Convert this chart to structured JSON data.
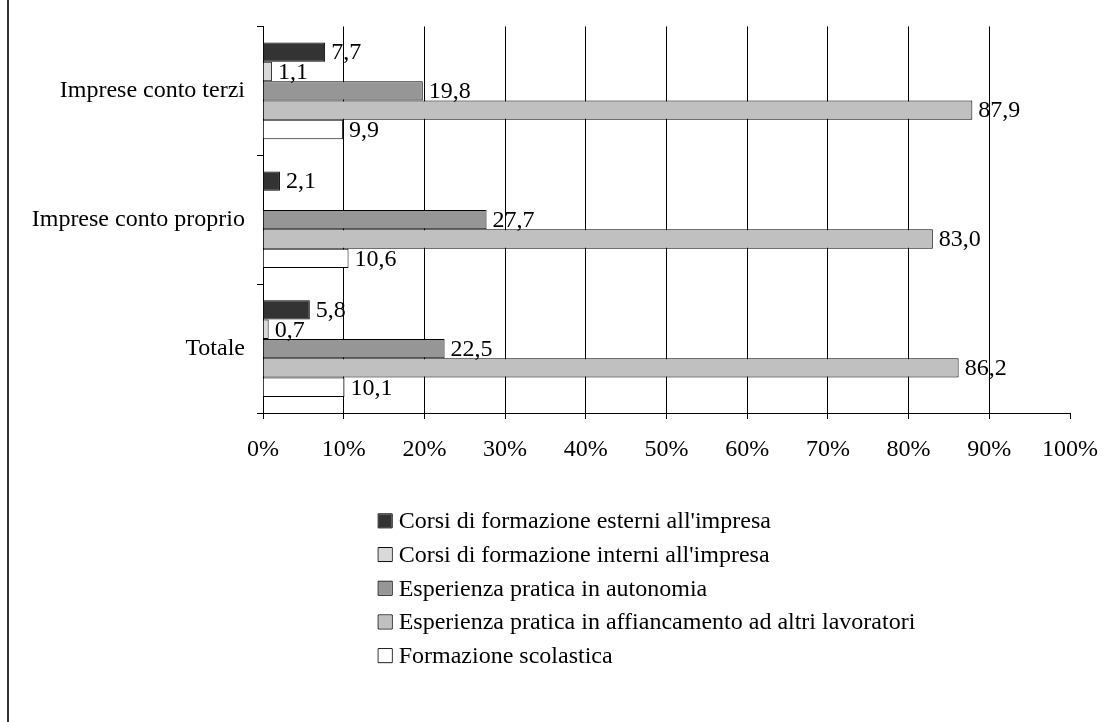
{
  "chart_data": {
    "type": "bar",
    "orientation": "horizontal",
    "categories": [
      "Imprese conto terzi",
      "Imprese conto proprio",
      "Totale"
    ],
    "series": [
      {
        "name": "Corsi di formazione esterni all'impresa",
        "color": "#333333",
        "values": [
          7.7,
          2.1,
          5.8
        ],
        "value_labels": [
          "7,7",
          "2,1",
          "5,8"
        ]
      },
      {
        "name": "Corsi di formazione interni all'impresa",
        "color": "#d9d9d9",
        "values": [
          1.1,
          null,
          0.7
        ],
        "value_labels": [
          "1,1",
          null,
          "0,7"
        ]
      },
      {
        "name": "Esperienza pratica in autonomia",
        "color": "#969696",
        "values": [
          19.8,
          27.7,
          22.5
        ],
        "value_labels": [
          "19,8",
          "27,7",
          "22,5"
        ]
      },
      {
        "name": "Esperienza pratica in affiancamento ad altri lavoratori",
        "color": "#c0c0c0",
        "values": [
          87.9,
          83.0,
          86.2
        ],
        "value_labels": [
          "87,9",
          "83,0",
          "86,2"
        ]
      },
      {
        "name": "Formazione scolastica",
        "color": "#ffffff",
        "values": [
          9.9,
          10.6,
          10.1
        ],
        "value_labels": [
          "9,9",
          "10,6",
          "10,1"
        ]
      }
    ],
    "xlim": [
      0,
      100
    ],
    "xticks": [
      {
        "value": 0,
        "label": "0%"
      },
      {
        "value": 10,
        "label": "10%"
      },
      {
        "value": 20,
        "label": "20%"
      },
      {
        "value": 30,
        "label": "30%"
      },
      {
        "value": 40,
        "label": "40%"
      },
      {
        "value": 50,
        "label": "50%"
      },
      {
        "value": 60,
        "label": "60%"
      },
      {
        "value": 70,
        "label": "70%"
      },
      {
        "value": 80,
        "label": "80%"
      },
      {
        "value": 90,
        "label": "90%"
      },
      {
        "value": 100,
        "label": "100%"
      }
    ],
    "grid": "x",
    "legend": "bottom"
  }
}
